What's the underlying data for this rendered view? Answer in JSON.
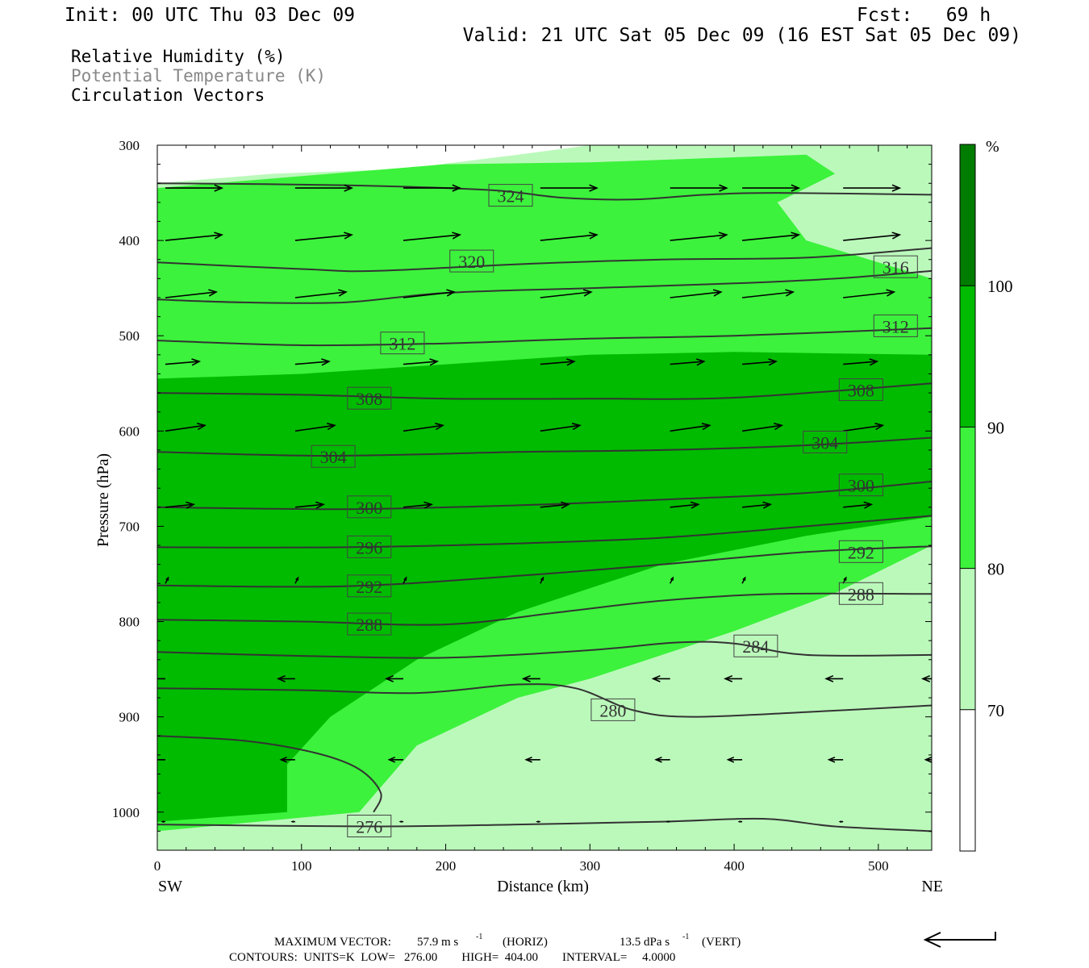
{
  "header": {
    "init": "Init: 00 UTC Thu 03 Dec 09",
    "fcst": "Fcst:   69 h",
    "valid": "Valid: 21 UTC Sat 05 Dec 09 (16 EST Sat 05 Dec 09)",
    "line1": "Relative Humidity (%)",
    "line2": "Potential Temperature (K)",
    "line3": "Circulation Vectors"
  },
  "axes": {
    "ylabel": "Pressure (hPa)",
    "xlabel": "Distance (km)",
    "left_end": "SW",
    "right_end": "NE"
  },
  "footer": {
    "max_vector_label": "MAXIMUM VECTOR:",
    "max_vector_horiz": "57.9 m s",
    "horiz_unit_sup": "-1",
    "horiz_tag": "(HORIZ)",
    "max_vector_vert": "13.5 dPa s",
    "vert_unit_sup": "-1",
    "vert_tag": "(VERT)",
    "contours": "CONTOURS:  UNITS=K  LOW=   276.00        HIGH=  404.00        INTERVAL=     4.0000"
  },
  "colorbar": {
    "unit": "%",
    "levels": [
      70,
      80,
      90,
      100
    ],
    "colors": [
      "#ffffff",
      "#bbf9bb",
      "#3cf23c",
      "#00bb00",
      "#007c00"
    ]
  },
  "chart_data": {
    "type": "contour",
    "xlim": [
      0,
      537
    ],
    "ylim": [
      300,
      1040
    ],
    "xticks": [
      0,
      100,
      200,
      300,
      400,
      500
    ],
    "yticks": [
      300,
      400,
      500,
      600,
      700,
      800,
      900,
      1000
    ],
    "theta_contours": [
      {
        "label": "324",
        "points": [
          [
            0,
            340
          ],
          [
            130,
            342
          ],
          [
            230,
            347
          ],
          [
            280,
            355
          ],
          [
            330,
            357
          ],
          [
            380,
            352
          ],
          [
            430,
            350
          ],
          [
            537,
            352
          ]
        ],
        "label_at": [
          245,
          353
        ]
      },
      {
        "label": "320",
        "points": [
          [
            0,
            423
          ],
          [
            100,
            430
          ],
          [
            150,
            432
          ],
          [
            250,
            425
          ],
          [
            350,
            420
          ],
          [
            450,
            418
          ],
          [
            537,
            408
          ]
        ],
        "label_at": [
          218,
          422
        ]
      },
      {
        "label": "316",
        "points": [
          [
            0,
            462
          ],
          [
            60,
            465
          ],
          [
            130,
            465
          ],
          [
            200,
            455
          ],
          [
            300,
            450
          ],
          [
            400,
            445
          ],
          [
            470,
            440
          ],
          [
            537,
            432
          ]
        ],
        "label_at": [
          512,
          428
        ]
      },
      {
        "label": "312",
        "points": [
          [
            0,
            505
          ],
          [
            100,
            510
          ],
          [
            200,
            508
          ],
          [
            300,
            503
          ],
          [
            400,
            500
          ],
          [
            537,
            492
          ]
        ],
        "label_at": [
          170,
          508
        ]
      },
      {
        "label": "312",
        "points": [],
        "label_at": [
          512,
          490
        ]
      },
      {
        "label": "308",
        "points": [
          [
            0,
            560
          ],
          [
            100,
            562
          ],
          [
            200,
            566
          ],
          [
            300,
            566
          ],
          [
            400,
            565
          ],
          [
            537,
            550
          ]
        ],
        "label_at": [
          147,
          566
        ]
      },
      {
        "label": "308",
        "points": [],
        "label_at": [
          488,
          557
        ]
      },
      {
        "label": "304",
        "points": [
          [
            0,
            622
          ],
          [
            120,
            626
          ],
          [
            250,
            622
          ],
          [
            350,
            620
          ],
          [
            450,
            615
          ],
          [
            537,
            607
          ]
        ],
        "label_at": [
          122,
          627
        ]
      },
      {
        "label": "304",
        "points": [],
        "label_at": [
          463,
          612
        ]
      },
      {
        "label": "300",
        "points": [
          [
            0,
            680
          ],
          [
            130,
            682
          ],
          [
            250,
            678
          ],
          [
            350,
            672
          ],
          [
            450,
            665
          ],
          [
            537,
            653
          ]
        ],
        "label_at": [
          147,
          680
        ]
      },
      {
        "label": "300",
        "points": [],
        "label_at": [
          488,
          657
        ]
      },
      {
        "label": "296",
        "points": [
          [
            0,
            722
          ],
          [
            130,
            722
          ],
          [
            250,
            718
          ],
          [
            350,
            712
          ],
          [
            450,
            700
          ],
          [
            537,
            689
          ]
        ],
        "label_at": [
          147,
          722
        ]
      },
      {
        "label": "292",
        "points": [
          [
            0,
            762
          ],
          [
            130,
            763
          ],
          [
            250,
            752
          ],
          [
            350,
            740
          ],
          [
            450,
            727
          ],
          [
            537,
            721
          ]
        ],
        "label_at": [
          147,
          763
        ]
      },
      {
        "label": "292",
        "points": [],
        "label_at": [
          488,
          727
        ]
      },
      {
        "label": "288",
        "points": [
          [
            0,
            798
          ],
          [
            100,
            800
          ],
          [
            200,
            803
          ],
          [
            280,
            790
          ],
          [
            350,
            778
          ],
          [
            430,
            771
          ],
          [
            537,
            771
          ]
        ],
        "label_at": [
          147,
          803
        ]
      },
      {
        "label": "288",
        "points": [],
        "label_at": [
          488,
          771
        ]
      },
      {
        "label": "284",
        "points": [
          [
            0,
            832
          ],
          [
            100,
            836
          ],
          [
            200,
            838
          ],
          [
            300,
            830
          ],
          [
            360,
            822
          ],
          [
            400,
            823
          ],
          [
            450,
            835
          ],
          [
            537,
            835
          ]
        ],
        "label_at": [
          415,
          826
        ]
      },
      {
        "label": "280",
        "points": [
          [
            0,
            870
          ],
          [
            100,
            872
          ],
          [
            180,
            875
          ],
          [
            250,
            866
          ],
          [
            290,
            870
          ],
          [
            330,
            893
          ],
          [
            370,
            900
          ],
          [
            450,
            895
          ],
          [
            537,
            888
          ]
        ],
        "label_at": [
          316,
          893
        ]
      },
      {
        "label": "276",
        "points": [
          [
            0,
            1013
          ],
          [
            150,
            1015
          ],
          [
            250,
            1013
          ],
          [
            350,
            1010
          ],
          [
            420,
            1007
          ],
          [
            470,
            1015
          ],
          [
            537,
            1020
          ]
        ],
        "label_at": [
          147,
          1015
        ]
      },
      {
        "label": "",
        "points": [
          [
            0,
            920
          ],
          [
            60,
            925
          ],
          [
            110,
            938
          ],
          [
            140,
            955
          ],
          [
            155,
            980
          ],
          [
            150,
            1000
          ]
        ],
        "label_at": null
      }
    ],
    "rh_regions": [
      {
        "level": "70-80",
        "points": [
          [
            0,
            340
          ],
          [
            80,
            330
          ],
          [
            170,
            325
          ],
          [
            250,
            310
          ],
          [
            300,
            300
          ],
          [
            537,
            300
          ],
          [
            537,
            1040
          ],
          [
            0,
            1040
          ]
        ]
      },
      {
        "level": "80-90",
        "points": [
          [
            0,
            345
          ],
          [
            120,
            330
          ],
          [
            200,
            320
          ],
          [
            300,
            318
          ],
          [
            450,
            310
          ],
          [
            470,
            330
          ],
          [
            430,
            360
          ],
          [
            450,
            400
          ],
          [
            537,
            440
          ],
          [
            537,
            720
          ],
          [
            470,
            770
          ],
          [
            400,
            810
          ],
          [
            300,
            860
          ],
          [
            250,
            880
          ],
          [
            180,
            930
          ],
          [
            140,
            1000
          ],
          [
            0,
            1020
          ]
        ]
      },
      {
        "level": "90-100",
        "points": [
          [
            0,
            545
          ],
          [
            100,
            540
          ],
          [
            300,
            520
          ],
          [
            400,
            517
          ],
          [
            537,
            520
          ],
          [
            537,
            690
          ],
          [
            450,
            710
          ],
          [
            350,
            740
          ],
          [
            250,
            790
          ],
          [
            180,
            840
          ],
          [
            120,
            900
          ],
          [
            90,
            950
          ],
          [
            90,
            1000
          ],
          [
            0,
            1010
          ]
        ]
      }
    ],
    "vectors": {
      "rows": [
        {
          "p": 345,
          "x": [
            0,
            90,
            165,
            260,
            350,
            400,
            470,
            537
          ],
          "u": 1.0,
          "w": 0.0
        },
        {
          "p": 400,
          "x": [
            0,
            90,
            165,
            260,
            350,
            400,
            470,
            537
          ],
          "u": 1.0,
          "w": 0.1
        },
        {
          "p": 460,
          "x": [
            0,
            90,
            165,
            260,
            350,
            400,
            470,
            537
          ],
          "u": 0.9,
          "w": 0.1
        },
        {
          "p": 530,
          "x": [
            0,
            90,
            165,
            260,
            350,
            400,
            470,
            537
          ],
          "u": 0.6,
          "w": 0.05
        },
        {
          "p": 600,
          "x": [
            0,
            90,
            165,
            260,
            350,
            400,
            470,
            537
          ],
          "u": 0.7,
          "w": 0.1
        },
        {
          "p": 680,
          "x": [
            0,
            90,
            165,
            260,
            350,
            400,
            470,
            537
          ],
          "u": 0.5,
          "w": 0.05
        },
        {
          "p": 760,
          "x": [
            0,
            90,
            165,
            260,
            350,
            400,
            470,
            537
          ],
          "u": 0.05,
          "w": 0.1
        },
        {
          "p": 860,
          "x": [
            0,
            90,
            165,
            260,
            350,
            400,
            470,
            537
          ],
          "u": -0.3,
          "w": 0.0
        },
        {
          "p": 945,
          "x": [
            0,
            90,
            165,
            260,
            350,
            400,
            470,
            537
          ],
          "u": -0.25,
          "w": 0.0
        },
        {
          "p": 1010,
          "x": [
            0,
            90,
            165,
            260,
            350,
            400,
            470,
            537
          ],
          "u": -0.05,
          "w": 0.0
        }
      ]
    }
  }
}
